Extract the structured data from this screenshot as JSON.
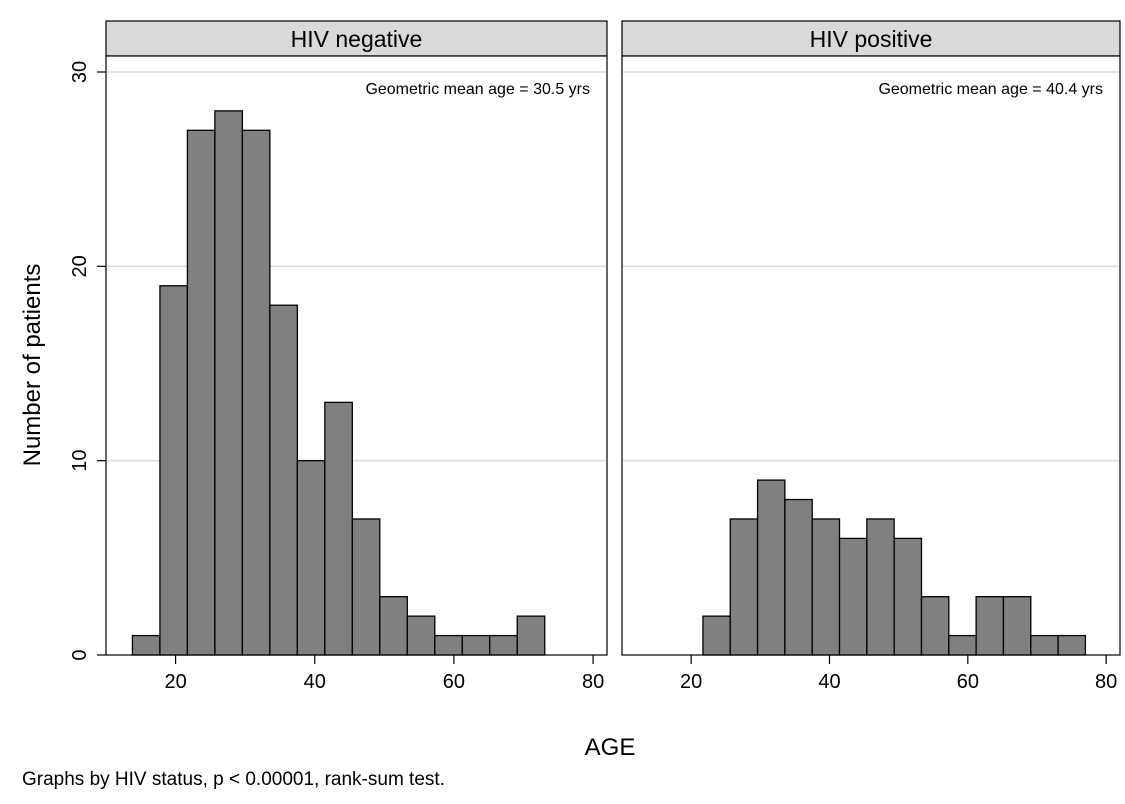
{
  "chart_data": {
    "type": "bar",
    "xlabel": "AGE",
    "ylabel": "Number of patients",
    "note": "Graphs by HIV status, p < 0.00001, rank-sum test.",
    "xlim": [
      10,
      82
    ],
    "ylim": [
      0,
      30
    ],
    "xticks": [
      20,
      40,
      60,
      80
    ],
    "yticks": [
      0,
      10,
      20,
      30
    ],
    "grid": true,
    "bin_width": 3.95,
    "panels": [
      {
        "label": "HIV negative",
        "annotation": "Geometric mean age = 30.5 yrs",
        "bin_starts": [
          13.8,
          17.75,
          21.7,
          25.65,
          29.6,
          33.55,
          37.5,
          41.45,
          45.4,
          49.35,
          53.3,
          57.25,
          61.2,
          65.15,
          69.1
        ],
        "values": [
          1,
          19,
          27,
          28,
          27,
          18,
          10,
          13,
          7,
          3,
          2,
          1,
          1,
          1,
          2
        ]
      },
      {
        "label": "HIV positive",
        "annotation": "Geometric mean age = 40.4 yrs",
        "bin_starts": [
          21.7,
          25.65,
          29.6,
          33.55,
          37.5,
          41.45,
          45.4,
          49.35,
          53.3,
          57.25,
          61.2,
          65.15,
          69.1,
          73.05
        ],
        "values": [
          2,
          7,
          9,
          8,
          7,
          6,
          7,
          6,
          3,
          1,
          3,
          3,
          1,
          1
        ]
      }
    ],
    "colors": {
      "bar_fill": "#808080",
      "bar_stroke": "#000000",
      "strip_fill": "#d9d9d9",
      "grid": "#d9d9d9"
    }
  }
}
